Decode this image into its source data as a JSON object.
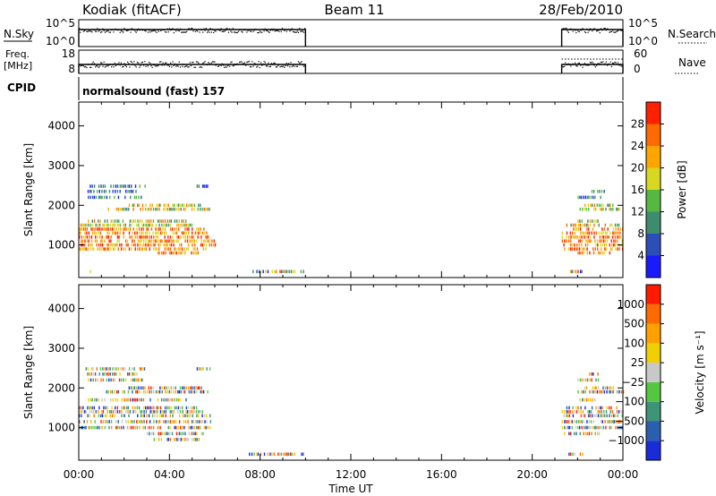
{
  "header": {
    "station": "Kodiak (fitACF)",
    "beam": "Beam 11",
    "date": "28/Feb/2010"
  },
  "panels": {
    "nsky": {
      "label": "N.Sky",
      "right_label": "N.Search",
      "left_ticks": [
        "10^5",
        "10^0"
      ],
      "right_ticks": [
        "10^5",
        "10^0"
      ]
    },
    "freq": {
      "label_line1": "Freq.",
      "label_line2": "[MHz]",
      "right_label": "Nave",
      "left_ticks": [
        "18",
        "8"
      ],
      "right_ticks": [
        "60",
        "0"
      ]
    },
    "cpid": {
      "label": "CPID",
      "text": "normalsound (fast) 157"
    }
  },
  "chart_data": [
    {
      "type": "heatmap",
      "title": "",
      "xlabel": "Time UT",
      "ylabel": "Slant Range [km]",
      "x_ticks": [
        "00:00",
        "04:00",
        "08:00",
        "12:00",
        "16:00",
        "20:00",
        "00:00"
      ],
      "xlim_hours": [
        0,
        24
      ],
      "y_ticks": [
        1000,
        2000,
        3000,
        4000
      ],
      "ylim": [
        180,
        4600
      ],
      "colorbar": {
        "label": "Power [dB]",
        "ticks": [
          "4",
          "8",
          "12",
          "16",
          "20",
          "24",
          "28"
        ],
        "colors": [
          "#1a1aff",
          "#2a4fb8",
          "#3d8c6e",
          "#55b840",
          "#d8d820",
          "#ffa500",
          "#ff6a00",
          "#ff2000"
        ]
      },
      "data_windows_hours": [
        [
          0,
          10.0
        ],
        [
          21.3,
          24
        ]
      ],
      "range_bands": [
        {
          "km": 330,
          "t": [
            [
              0.4,
              0.6
            ],
            [
              7.5,
              9.9
            ],
            [
              21.6,
              22.2
            ]
          ],
          "level": "mixed"
        },
        {
          "km": 800,
          "t": [
            [
              3.3,
              5.3
            ],
            [
              22.0,
              23.5
            ]
          ],
          "level": "high"
        },
        {
          "km": 900,
          "t": [
            [
              0.0,
              5.6
            ],
            [
              21.4,
              24.0
            ]
          ],
          "level": "high"
        },
        {
          "km": 1000,
          "t": [
            [
              0.0,
              6.0
            ],
            [
              21.3,
              24.0
            ]
          ],
          "level": "high"
        },
        {
          "km": 1100,
          "t": [
            [
              0.0,
              6.0
            ],
            [
              21.3,
              24.0
            ]
          ],
          "level": "high"
        },
        {
          "km": 1200,
          "t": [
            [
              0.0,
              5.8
            ],
            [
              21.3,
              24.0
            ]
          ],
          "level": "high"
        },
        {
          "km": 1300,
          "t": [
            [
              0.0,
              5.8
            ],
            [
              21.3,
              24.0
            ]
          ],
          "level": "high"
        },
        {
          "km": 1400,
          "t": [
            [
              0.0,
              5.5
            ],
            [
              21.3,
              24.0
            ]
          ],
          "level": "high"
        },
        {
          "km": 1500,
          "t": [
            [
              0.0,
              5.2
            ],
            [
              21.5,
              23.8
            ]
          ],
          "level": "mid"
        },
        {
          "km": 1600,
          "t": [
            [
              0.4,
              4.8
            ],
            [
              22.0,
              23.0
            ]
          ],
          "level": "mid"
        },
        {
          "km": 1900,
          "t": [
            [
              1.2,
              5.8
            ],
            [
              22.0,
              24.0
            ]
          ],
          "level": "mid"
        },
        {
          "km": 2000,
          "t": [
            [
              2.2,
              5.4
            ],
            [
              22.3,
              23.6
            ]
          ],
          "level": "mid"
        },
        {
          "km": 2200,
          "t": [
            [
              0.4,
              2.8
            ],
            [
              22.0,
              23.0
            ]
          ],
          "level": "low"
        },
        {
          "km": 2350,
          "t": [
            [
              0.3,
              2.6
            ],
            [
              22.5,
              23.2
            ]
          ],
          "level": "low"
        },
        {
          "km": 2480,
          "t": [
            [
              0.3,
              2.9
            ],
            [
              5.2,
              5.8
            ]
          ],
          "level": "low"
        }
      ]
    },
    {
      "type": "heatmap",
      "title": "",
      "xlabel": "Time UT",
      "ylabel": "Slant Range [km]",
      "x_ticks": [
        "00:00",
        "04:00",
        "08:00",
        "12:00",
        "16:00",
        "20:00",
        "00:00"
      ],
      "xlim_hours": [
        0,
        24
      ],
      "y_ticks": [
        1000,
        2000,
        3000,
        4000
      ],
      "ylim": [
        180,
        4600
      ],
      "colorbar": {
        "label": "Velocity [m s⁻¹]",
        "ticks": [
          "1000",
          "500",
          "100",
          "25",
          "−25",
          "−100",
          "−500",
          "−1000"
        ],
        "colors": [
          "#1a2bd8",
          "#2a5fb0",
          "#3d9478",
          "#54c640",
          "#c8c8c8",
          "#f0d000",
          "#ffa000",
          "#ff6a00",
          "#ff1a00"
        ]
      },
      "data_windows_hours": [
        [
          0,
          10.0
        ],
        [
          21.3,
          24
        ]
      ],
      "range_bands": [
        {
          "km": 330,
          "t": [
            [
              7.5,
              9.9
            ],
            [
              21.6,
              22.2
            ]
          ],
          "level": "mixed"
        },
        {
          "km": 700,
          "t": [
            [
              3.3,
              5.3
            ]
          ],
          "level": "mixed"
        },
        {
          "km": 850,
          "t": [
            [
              3.0,
              5.6
            ],
            [
              21.4,
              23.0
            ]
          ],
          "level": "mixed"
        },
        {
          "km": 1000,
          "t": [
            [
              0.0,
              6.0
            ],
            [
              21.3,
              24.0
            ]
          ],
          "level": "mixed"
        },
        {
          "km": 1150,
          "t": [
            [
              0.0,
              5.8
            ],
            [
              21.3,
              24.0
            ]
          ],
          "level": "mixed"
        },
        {
          "km": 1300,
          "t": [
            [
              0.0,
              5.8
            ],
            [
              21.3,
              24.0
            ]
          ],
          "level": "mixed"
        },
        {
          "km": 1400,
          "t": [
            [
              0.0,
              5.5
            ],
            [
              21.3,
              24.0
            ]
          ],
          "level": "mixed"
        },
        {
          "km": 1500,
          "t": [
            [
              0.0,
              5.2
            ],
            [
              21.5,
              23.8
            ]
          ],
          "level": "mixed"
        },
        {
          "km": 1700,
          "t": [
            [
              0.4,
              4.8
            ],
            [
              22.0,
              23.0
            ]
          ],
          "level": "mixed"
        },
        {
          "km": 1900,
          "t": [
            [
              1.2,
              5.8
            ],
            [
              22.0,
              24.0
            ]
          ],
          "level": "mixed"
        },
        {
          "km": 2000,
          "t": [
            [
              2.2,
              5.4
            ],
            [
              22.3,
              23.6
            ]
          ],
          "level": "mixed"
        },
        {
          "km": 2200,
          "t": [
            [
              0.4,
              2.8
            ],
            [
              22.0,
              23.0
            ]
          ],
          "level": "mixed"
        },
        {
          "km": 2350,
          "t": [
            [
              0.3,
              2.6
            ],
            [
              22.5,
              23.2
            ]
          ],
          "level": "mixed"
        },
        {
          "km": 2480,
          "t": [
            [
              0.3,
              2.9
            ],
            [
              5.2,
              5.8
            ]
          ],
          "level": "mixed"
        }
      ]
    }
  ]
}
